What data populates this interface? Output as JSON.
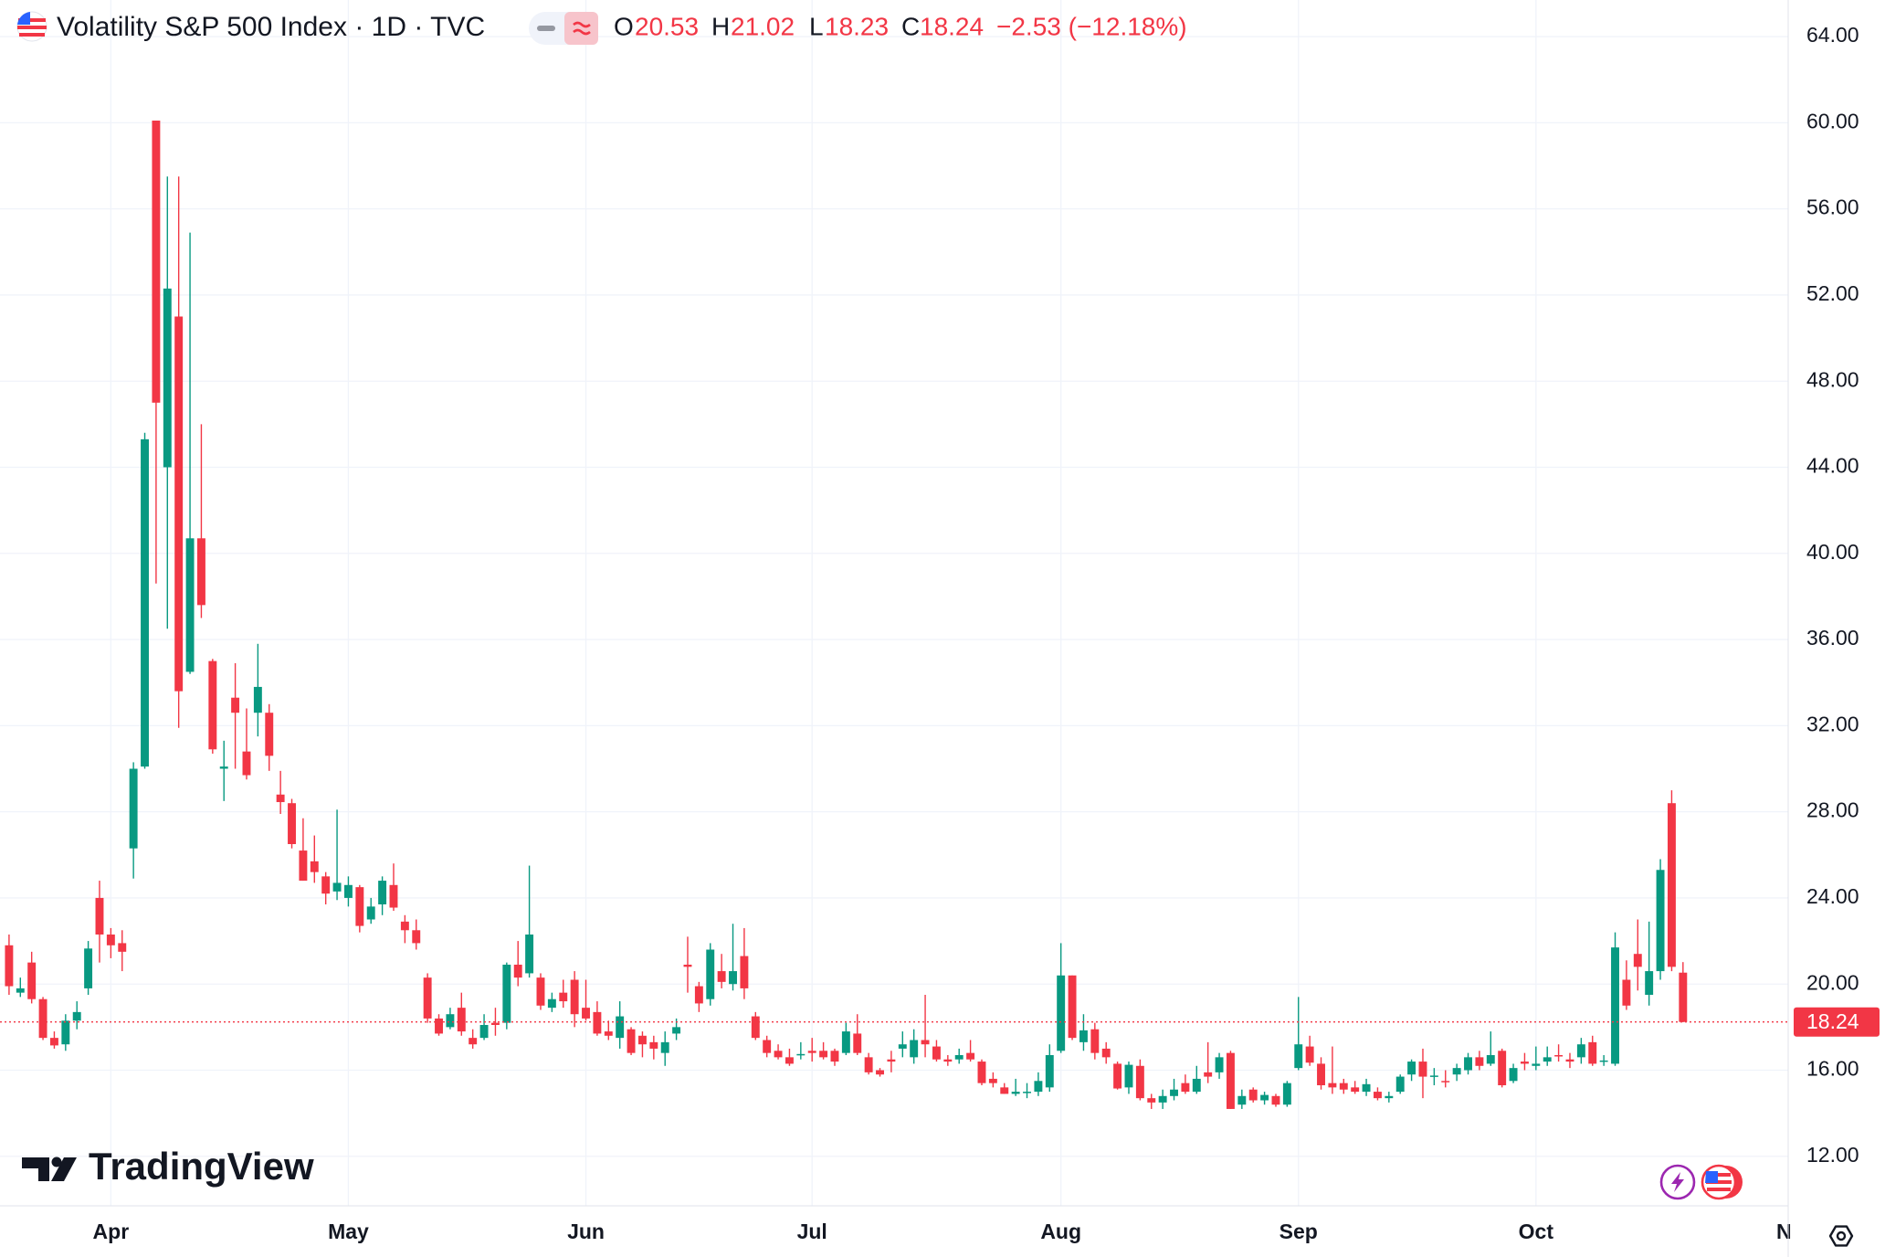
{
  "chart_data": {
    "type": "candlestick",
    "title": "Volatility S&P 500 Index · 1D · TVC",
    "ohlc_labels": [
      "O",
      "H",
      "L",
      "C"
    ],
    "change_label": "−2.53 (−12.18%)",
    "watermark": "TradingView",
    "colors": {
      "up": "#089981",
      "down": "#f23645"
    },
    "grid": true,
    "xlim": [
      -0.8,
      157.3
    ],
    "ylim": [
      9.7,
      65.7
    ],
    "xticks": [
      {
        "value": 9,
        "label": "Apr"
      },
      {
        "value": 30,
        "label": "May"
      },
      {
        "value": 51,
        "label": "Jun"
      },
      {
        "value": 71,
        "label": "Jul"
      },
      {
        "value": 93,
        "label": "Aug"
      },
      {
        "value": 114,
        "label": "Sep"
      },
      {
        "value": 135,
        "label": "Oct"
      },
      {
        "value": 158,
        "label": "Nov"
      }
    ],
    "yticks": [
      {
        "value": 12,
        "label": "12.00"
      },
      {
        "value": 16,
        "label": "16.00"
      },
      {
        "value": 20,
        "label": "20.00"
      },
      {
        "value": 24,
        "label": "24.00"
      },
      {
        "value": 28,
        "label": "28.00"
      },
      {
        "value": 32,
        "label": "32.00"
      },
      {
        "value": 36,
        "label": "36.00"
      },
      {
        "value": 40,
        "label": "40.00"
      },
      {
        "value": 44,
        "label": "44.00"
      },
      {
        "value": 48,
        "label": "48.00"
      },
      {
        "value": 52,
        "label": "52.00"
      },
      {
        "value": 56,
        "label": "56.00"
      },
      {
        "value": 60,
        "label": "60.00"
      },
      {
        "value": 64,
        "label": "64.00"
      }
    ],
    "open": [
      21.8,
      19.6,
      21.0,
      19.3,
      17.5,
      17.2,
      18.3,
      19.8,
      24.0,
      22.3,
      21.9,
      26.3,
      30.1,
      60.1,
      44.0,
      51.0,
      34.5,
      40.7,
      35.0,
      30.0,
      33.3,
      30.8,
      32.6,
      32.6,
      28.8,
      28.4,
      26.2,
      25.7,
      25.0,
      24.3,
      24.0,
      24.5,
      23.0,
      23.7,
      24.6,
      22.9,
      22.5,
      20.3,
      18.4,
      18.0,
      18.9,
      17.5,
      17.5,
      18.2,
      18.2,
      20.9,
      20.5,
      20.3,
      18.9,
      19.6,
      20.2,
      18.9,
      18.7,
      17.8,
      17.5,
      17.9,
      17.6,
      17.3,
      16.8,
      17.7,
      20.9,
      19.9,
      19.3,
      20.6,
      20.0,
      21.3,
      18.5,
      17.4,
      16.9,
      16.6,
      16.7,
      16.9,
      16.9,
      16.9,
      16.8,
      17.7,
      16.6,
      16.0,
      16.5,
      17.0,
      16.6,
      17.4,
      17.1,
      16.5,
      16.5,
      16.8,
      16.4,
      15.6,
      15.2,
      14.9,
      15.0,
      15.0,
      15.2,
      16.9,
      20.4,
      17.3,
      17.9,
      17.0,
      16.3,
      15.2,
      16.2,
      14.7,
      14.5,
      14.8,
      15.4,
      15.0,
      15.9,
      15.9,
      16.8,
      14.4,
      15.1,
      14.6,
      14.8,
      14.4,
      16.1,
      17.1,
      16.3,
      15.4,
      15.4,
      15.2,
      15.0,
      15.0,
      14.7,
      15.0,
      15.8,
      16.4,
      15.7,
      15.5,
      15.8,
      16.0,
      16.6,
      16.3,
      16.9,
      15.5,
      16.4,
      16.2,
      16.4,
      16.7,
      16.5,
      16.6,
      17.3,
      16.4,
      16.3,
      20.2,
      21.4,
      19.5,
      20.6,
      28.4,
      20.53
    ],
    "high": [
      22.3,
      20.3,
      21.5,
      19.4,
      17.8,
      18.6,
      19.2,
      22.0,
      24.8,
      22.6,
      22.5,
      30.3,
      45.6,
      60.1,
      57.5,
      57.5,
      54.9,
      46.0,
      35.1,
      31.3,
      34.9,
      32.8,
      35.8,
      33.0,
      29.9,
      28.6,
      27.7,
      26.9,
      25.2,
      28.1,
      25.0,
      24.6,
      24.0,
      25.0,
      25.6,
      23.2,
      23.0,
      20.5,
      18.6,
      18.9,
      19.6,
      17.9,
      18.6,
      18.9,
      21.0,
      22.0,
      25.5,
      20.5,
      19.6,
      20.2,
      20.6,
      20.2,
      19.2,
      18.3,
      19.2,
      18.0,
      17.8,
      17.6,
      17.8,
      18.4,
      22.2,
      20.1,
      21.9,
      21.4,
      22.8,
      22.6,
      18.7,
      17.6,
      17.2,
      17.0,
      17.3,
      17.5,
      17.3,
      17.0,
      18.2,
      18.6,
      16.8,
      16.1,
      16.9,
      17.8,
      17.9,
      19.5,
      17.4,
      16.7,
      17.0,
      17.4,
      16.5,
      15.9,
      15.4,
      15.6,
      15.4,
      15.9,
      17.2,
      21.9,
      20.4,
      18.6,
      18.2,
      17.3,
      16.4,
      16.4,
      16.5,
      14.9,
      15.1,
      15.6,
      15.8,
      16.2,
      17.3,
      16.8,
      16.9,
      15.1,
      15.2,
      15.0,
      14.9,
      15.5,
      19.4,
      17.6,
      16.6,
      17.1,
      15.6,
      15.5,
      15.6,
      15.2,
      15.0,
      15.8,
      16.5,
      17.0,
      16.1,
      16.0,
      16.3,
      16.8,
      16.9,
      17.8,
      17.0,
      16.3,
      16.8,
      17.1,
      17.1,
      17.2,
      16.8,
      17.5,
      17.6,
      16.7,
      22.4,
      21.1,
      23.0,
      22.9,
      25.8,
      29.0,
      21.02
    ],
    "low": [
      19.5,
      19.4,
      19.1,
      17.4,
      17.0,
      16.9,
      17.9,
      19.5,
      21.0,
      21.2,
      20.6,
      24.9,
      30.0,
      38.6,
      36.5,
      31.9,
      34.4,
      37.0,
      30.7,
      28.5,
      30.0,
      29.5,
      31.5,
      29.9,
      27.9,
      26.3,
      24.8,
      24.7,
      23.7,
      23.9,
      23.6,
      22.4,
      22.8,
      23.2,
      23.4,
      21.9,
      21.6,
      18.2,
      17.6,
      17.9,
      17.6,
      17.0,
      17.4,
      17.6,
      17.9,
      19.9,
      20.3,
      18.8,
      18.7,
      18.9,
      18.0,
      18.3,
      17.6,
      17.4,
      17.0,
      16.7,
      16.6,
      16.5,
      16.2,
      17.4,
      19.6,
      18.7,
      19.0,
      19.8,
      19.7,
      19.3,
      17.4,
      16.6,
      16.5,
      16.2,
      16.5,
      16.4,
      16.5,
      16.2,
      16.7,
      16.7,
      15.8,
      15.7,
      15.9,
      16.6,
      16.3,
      16.6,
      16.4,
      16.2,
      16.3,
      16.4,
      15.3,
      15.2,
      14.9,
      14.8,
      14.7,
      14.8,
      15.0,
      16.8,
      17.4,
      16.9,
      16.5,
      16.3,
      15.1,
      14.9,
      14.6,
      14.2,
      14.2,
      14.6,
      14.9,
      14.9,
      15.4,
      15.6,
      14.2,
      14.2,
      14.5,
      14.4,
      14.3,
      14.3,
      16.0,
      16.2,
      15.1,
      14.9,
      14.9,
      14.9,
      14.8,
      14.6,
      14.5,
      14.9,
      15.5,
      14.7,
      15.3,
      15.2,
      15.5,
      15.8,
      16.0,
      16.2,
      15.2,
      15.4,
      16.0,
      16.0,
      16.2,
      16.4,
      16.1,
      16.3,
      16.2,
      16.2,
      16.2,
      18.8,
      19.7,
      19.0,
      20.2,
      20.6,
      18.23
    ],
    "close": [
      19.9,
      19.8,
      19.3,
      17.5,
      17.15,
      18.3,
      18.7,
      21.65,
      22.3,
      21.8,
      21.5,
      30.0,
      45.3,
      47.0,
      52.3,
      33.6,
      40.7,
      37.6,
      30.9,
      30.1,
      32.6,
      29.7,
      33.8,
      30.6,
      28.45,
      26.5,
      24.8,
      25.2,
      24.2,
      24.7,
      24.6,
      22.7,
      23.6,
      24.8,
      23.55,
      22.5,
      21.9,
      18.4,
      17.7,
      18.6,
      17.8,
      17.2,
      18.1,
      18.1,
      20.9,
      20.3,
      22.3,
      19.0,
      19.3,
      19.2,
      18.6,
      18.4,
      17.7,
      17.6,
      18.5,
      16.8,
      17.2,
      17.0,
      17.3,
      18.0,
      20.8,
      19.1,
      21.6,
      20.1,
      20.6,
      19.8,
      17.5,
      16.8,
      16.6,
      16.3,
      16.75,
      16.8,
      16.6,
      16.4,
      17.8,
      16.8,
      15.9,
      15.8,
      16.4,
      17.2,
      17.4,
      17.2,
      16.5,
      16.4,
      16.7,
      16.5,
      15.4,
      15.4,
      14.9,
      15.0,
      15.0,
      15.5,
      16.7,
      20.4,
      17.5,
      17.85,
      16.8,
      16.6,
      15.15,
      16.25,
      14.7,
      14.5,
      14.8,
      15.1,
      15.0,
      15.6,
      15.7,
      16.6,
      14.2,
      14.8,
      14.6,
      14.85,
      14.4,
      15.4,
      17.2,
      16.35,
      15.3,
      15.2,
      15.1,
      15.0,
      15.35,
      14.7,
      14.8,
      15.7,
      16.4,
      15.7,
      15.75,
      15.45,
      16.1,
      16.6,
      16.2,
      16.7,
      15.3,
      16.1,
      16.3,
      16.3,
      16.6,
      16.65,
      16.4,
      17.2,
      16.3,
      16.45,
      21.7,
      19.0,
      20.8,
      20.6,
      25.3,
      20.8,
      18.24
    ]
  }
}
